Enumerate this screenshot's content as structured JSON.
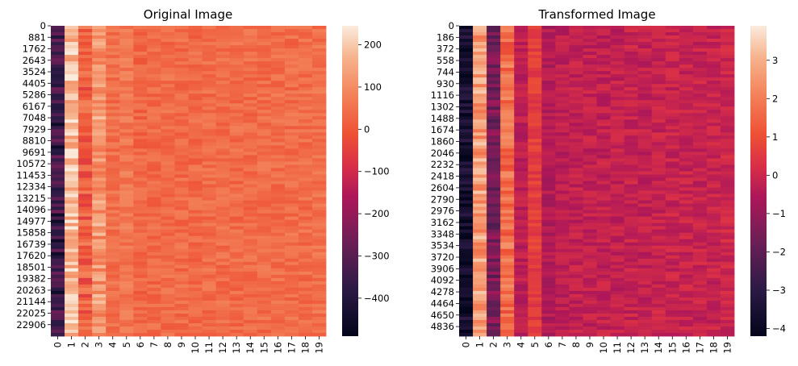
{
  "chart_data": [
    {
      "type": "heatmap",
      "title": "Original Image",
      "xlabel": "",
      "ylabel": "",
      "x_tick_labels": [
        "0",
        "1",
        "2",
        "3",
        "4",
        "5",
        "6",
        "7",
        "8",
        "9",
        "10",
        "11",
        "12",
        "13",
        "14",
        "15",
        "16",
        "17",
        "18",
        "19"
      ],
      "y_tick_labels": [
        "0",
        "881",
        "1762",
        "2643",
        "3524",
        "4405",
        "5286",
        "6167",
        "7048",
        "7929",
        "8810",
        "9691",
        "10572",
        "11453",
        "12334",
        "13215",
        "14096",
        "14977",
        "15858",
        "16739",
        "17620",
        "18501",
        "19382",
        "20263",
        "21144",
        "22025",
        "22906"
      ],
      "y_range": [
        0,
        23786
      ],
      "colorbar": {
        "ticks": [
          "200",
          "100",
          "0",
          "−100",
          "−200",
          "−300",
          "−400"
        ],
        "tick_values": [
          200,
          100,
          0,
          -100,
          -200,
          -300,
          -400
        ],
        "vmin": -490,
        "vmax": 245
      },
      "column_mean_values": [
        -330,
        180,
        10,
        120,
        45,
        60,
        30,
        35,
        40,
        38,
        35,
        40,
        40,
        38,
        40,
        40,
        42,
        40,
        42,
        45
      ]
    },
    {
      "type": "heatmap",
      "title": "Transformed Image",
      "xlabel": "",
      "ylabel": "",
      "x_tick_labels": [
        "0",
        "1",
        "2",
        "3",
        "4",
        "5",
        "6",
        "7",
        "8",
        "9",
        "10",
        "11",
        "12",
        "13",
        "14",
        "15",
        "16",
        "17",
        "18",
        "19"
      ],
      "y_tick_labels": [
        "0",
        "186",
        "372",
        "558",
        "744",
        "930",
        "1116",
        "1302",
        "1488",
        "1674",
        "1860",
        "2046",
        "2232",
        "2418",
        "2604",
        "2790",
        "2976",
        "3162",
        "3348",
        "3534",
        "3720",
        "3906",
        "4092",
        "4278",
        "4464",
        "4650",
        "4836"
      ],
      "y_range": [
        0,
        4990
      ],
      "colorbar": {
        "ticks": [
          "3",
          "2",
          "1",
          "0",
          "−1",
          "−2",
          "−3",
          "−4"
        ],
        "tick_values": [
          3,
          2,
          1,
          0,
          -1,
          -2,
          -3,
          -4
        ],
        "vmin": -4.2,
        "vmax": 3.9
      },
      "column_mean_values": [
        -3.7,
        2.6,
        -1.5,
        1.6,
        -0.3,
        0.6,
        -0.5,
        -0.3,
        -0.2,
        -0.2,
        -0.2,
        -0.2,
        -0.1,
        -0.2,
        -0.1,
        -0.1,
        -0.1,
        -0.1,
        -0.1,
        0.0
      ]
    }
  ]
}
